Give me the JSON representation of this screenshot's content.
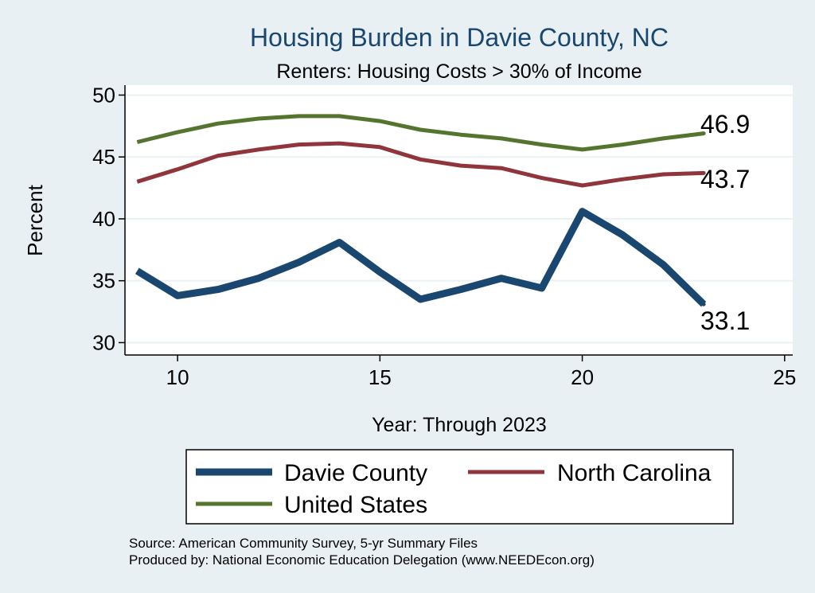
{
  "chart_data": {
    "type": "line",
    "title": "Housing Burden in Davie County, NC",
    "subtitle": "Renters: Housing Costs > 30% of Income",
    "xlabel": "Year: Through 2023",
    "ylabel": "Percent",
    "xlim": [
      8.7,
      25.2
    ],
    "ylim": [
      29.0,
      50.8
    ],
    "x_ticks": [
      10,
      15,
      20,
      25
    ],
    "y_ticks": [
      30,
      35,
      40,
      45,
      50
    ],
    "grid": true,
    "legend_position": "bottom",
    "series": [
      {
        "name": "Davie County",
        "color": "#1a476f",
        "x": [
          9,
          10,
          11,
          12,
          13,
          14,
          15,
          16,
          17,
          18,
          19,
          20,
          21,
          22,
          23
        ],
        "values": [
          35.8,
          33.8,
          34.3,
          35.2,
          36.5,
          38.1,
          35.7,
          33.5,
          34.3,
          35.2,
          34.4,
          40.6,
          38.7,
          36.3,
          33.1
        ],
        "end_label": "33.1"
      },
      {
        "name": "North Carolina",
        "color": "#90353b",
        "x": [
          9,
          10,
          11,
          12,
          13,
          14,
          15,
          16,
          17,
          18,
          19,
          20,
          21,
          22,
          23
        ],
        "values": [
          43.0,
          44.0,
          45.1,
          45.6,
          46.0,
          46.1,
          45.8,
          44.8,
          44.3,
          44.1,
          43.3,
          42.7,
          43.2,
          43.6,
          43.7
        ],
        "end_label": "43.7"
      },
      {
        "name": "United States",
        "color": "#55752f",
        "x": [
          9,
          10,
          11,
          12,
          13,
          14,
          15,
          16,
          17,
          18,
          19,
          20,
          21,
          22,
          23
        ],
        "values": [
          46.2,
          47.0,
          47.7,
          48.1,
          48.3,
          48.3,
          47.9,
          47.2,
          46.8,
          46.5,
          46.0,
          45.6,
          46.0,
          46.5,
          46.9
        ],
        "end_label": "46.9"
      }
    ]
  },
  "source": "Source: American Community Survey, 5-yr Summary Files",
  "producer": "Produced by: National Economic Education Delegation (www.NEEDEcon.org)"
}
